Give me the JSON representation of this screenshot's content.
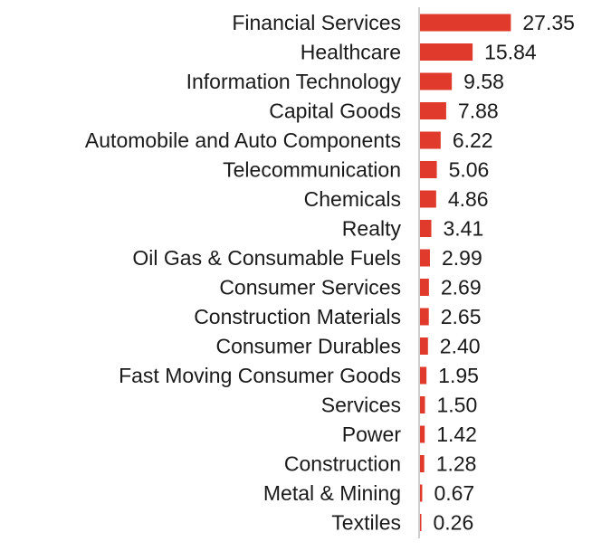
{
  "chart_data": {
    "type": "bar",
    "orientation": "horizontal",
    "categories": [
      "Financial Services",
      "Healthcare",
      "Information Technology",
      "Capital Goods",
      "Automobile and Auto Components",
      "Telecommunication",
      "Chemicals",
      "Realty",
      "Oil Gas & Consumable Fuels",
      "Consumer Services",
      "Construction Materials",
      "Consumer Durables",
      "Fast Moving Consumer Goods",
      "Services",
      "Power",
      "Construction",
      "Metal & Mining",
      "Textiles"
    ],
    "values": [
      27.35,
      15.84,
      9.58,
      7.88,
      6.22,
      5.06,
      4.86,
      3.41,
      2.99,
      2.69,
      2.65,
      2.4,
      1.95,
      1.5,
      1.42,
      1.28,
      0.67,
      0.26
    ],
    "value_labels": [
      "27.35",
      "15.84",
      "9.58",
      "7.88",
      "6.22",
      "5.06",
      "4.86",
      "3.41",
      "2.99",
      "2.69",
      "2.65",
      "2.40",
      "1.95",
      "1.50",
      "1.42",
      "1.28",
      "0.67",
      "0.26"
    ],
    "title": "",
    "xlabel": "",
    "ylabel": "",
    "bar_color": "#e03a2d",
    "axis_color": "#bdbdbd",
    "grid": false,
    "legend": "none"
  }
}
